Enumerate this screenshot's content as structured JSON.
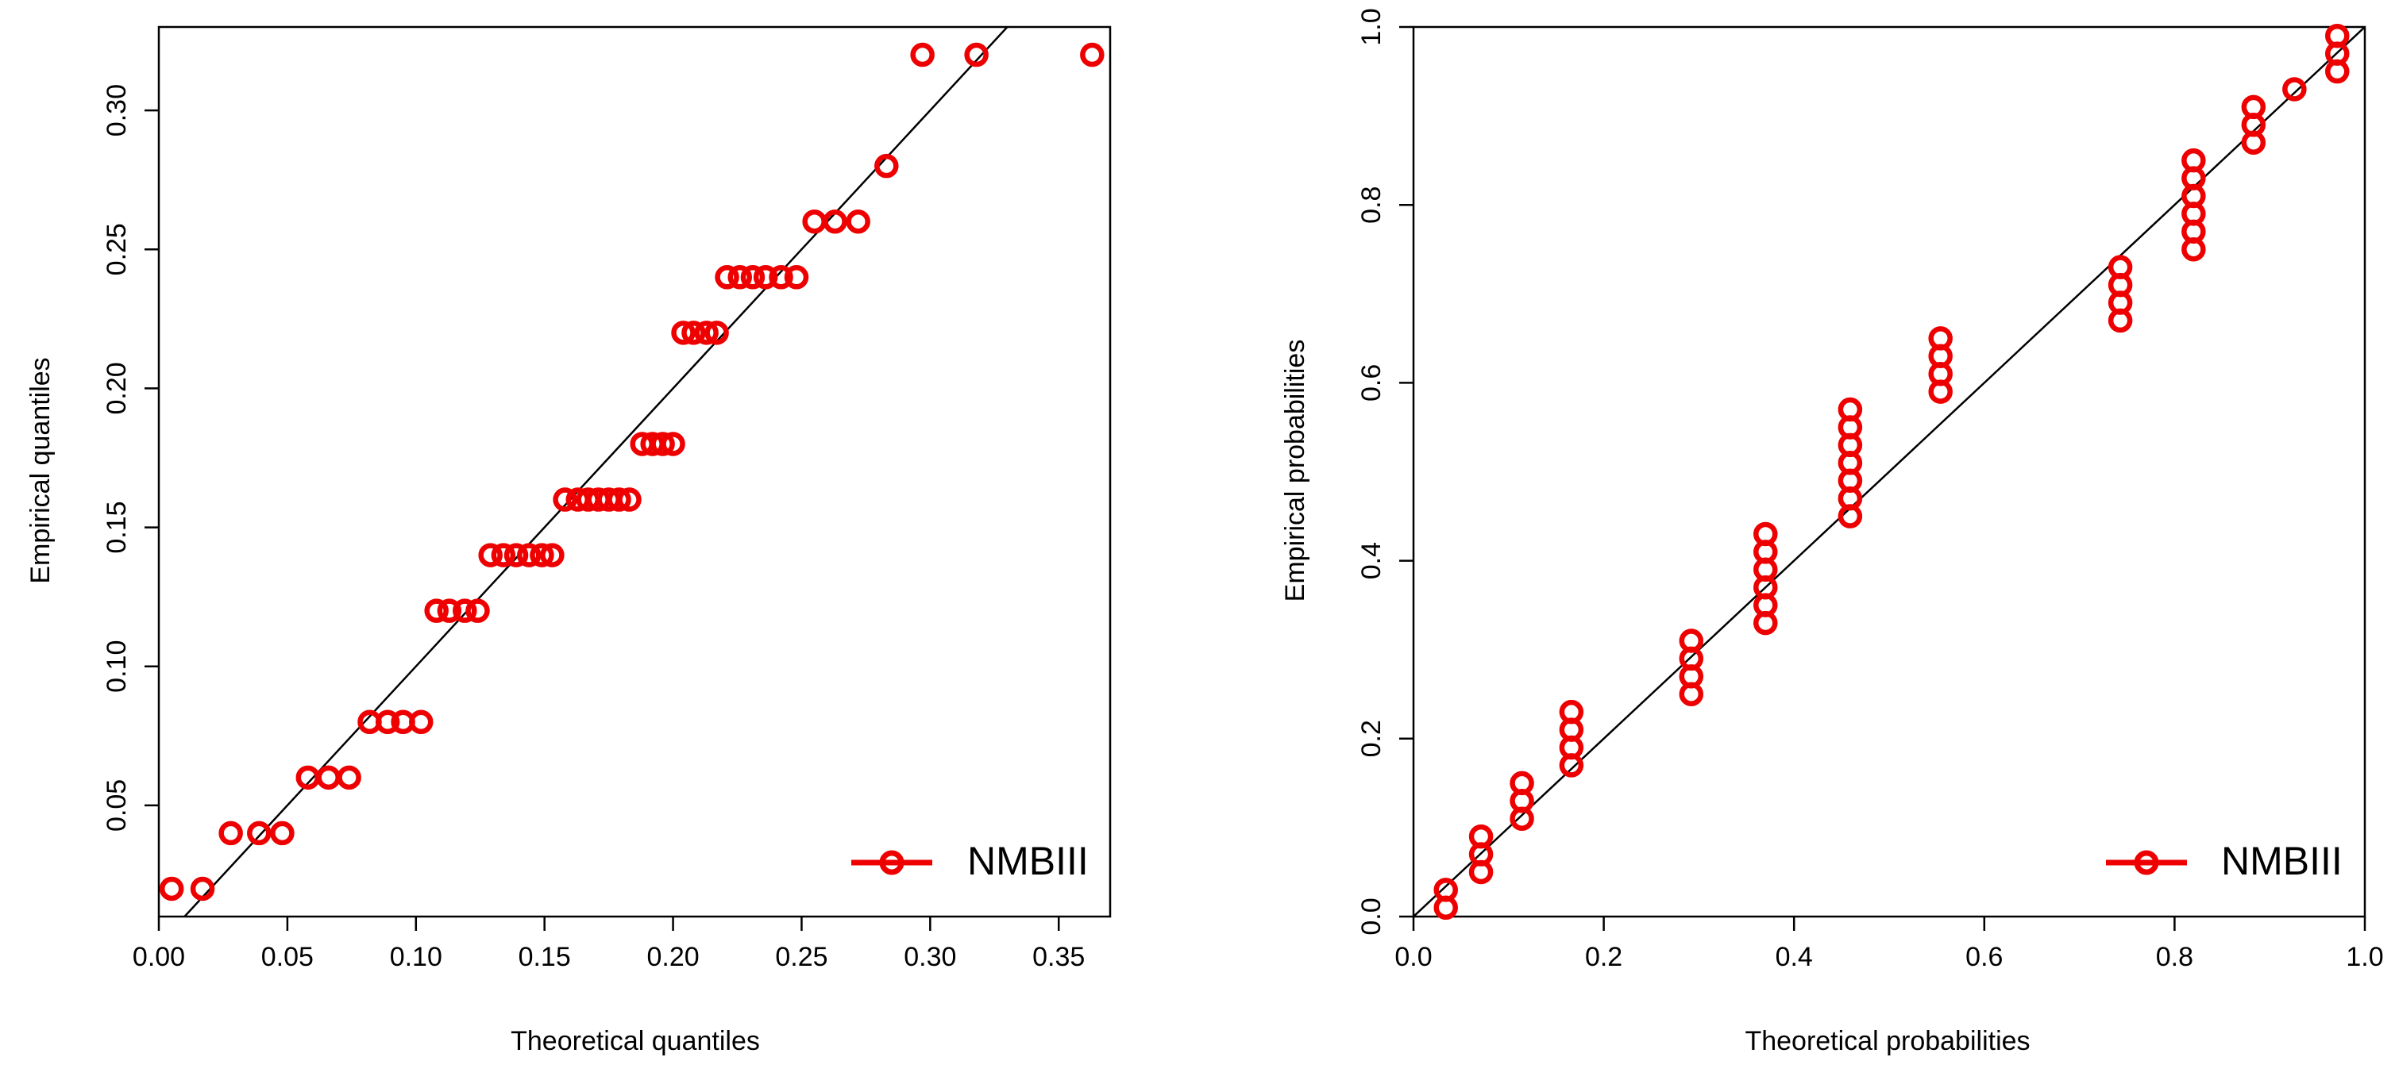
{
  "chart_data": [
    {
      "type": "scatter",
      "xlabel": "Theoretical quantiles",
      "ylabel": "Empirical quantiles",
      "xlim": [
        0.0,
        0.37
      ],
      "ylim": [
        0.01,
        0.33
      ],
      "xticks": [
        0.0,
        0.05,
        0.1,
        0.15,
        0.2,
        0.25,
        0.3,
        0.35
      ],
      "xtick_labels": [
        "0.00",
        "0.05",
        "0.10",
        "0.15",
        "0.20",
        "0.25",
        "0.30",
        "0.35"
      ],
      "yticks": [
        0.05,
        0.1,
        0.15,
        0.2,
        0.25,
        0.3
      ],
      "ytick_labels": [
        "0.05",
        "0.10",
        "0.15",
        "0.20",
        "0.25",
        "0.30"
      ],
      "legend": {
        "label": "NMBIII",
        "placement": "bottom-right"
      },
      "grid": false,
      "reference_line": {
        "from": [
          0.0,
          0.0
        ],
        "to": [
          0.37,
          0.37
        ],
        "color": "#000000"
      },
      "colors": {
        "points": "#ee0000",
        "line": "#000000"
      },
      "series": [
        {
          "name": "NMBIII",
          "x": [
            0.005,
            0.017,
            0.028,
            0.039,
            0.048,
            0.058,
            0.066,
            0.074,
            0.082,
            0.089,
            0.095,
            0.102,
            0.108,
            0.113,
            0.119,
            0.124,
            0.129,
            0.134,
            0.139,
            0.144,
            0.149,
            0.153,
            0.158,
            0.163,
            0.167,
            0.171,
            0.175,
            0.179,
            0.183,
            0.188,
            0.192,
            0.196,
            0.2,
            0.204,
            0.208,
            0.213,
            0.217,
            0.221,
            0.226,
            0.231,
            0.236,
            0.242,
            0.248,
            0.255,
            0.263,
            0.272,
            0.283,
            0.297,
            0.318,
            0.363
          ],
          "y": [
            0.02,
            0.02,
            0.04,
            0.04,
            0.04,
            0.06,
            0.06,
            0.06,
            0.08,
            0.08,
            0.08,
            0.08,
            0.12,
            0.12,
            0.12,
            0.12,
            0.14,
            0.14,
            0.14,
            0.14,
            0.14,
            0.14,
            0.16,
            0.16,
            0.16,
            0.16,
            0.16,
            0.16,
            0.16,
            0.18,
            0.18,
            0.18,
            0.18,
            0.22,
            0.22,
            0.22,
            0.22,
            0.24,
            0.24,
            0.24,
            0.24,
            0.24,
            0.24,
            0.26,
            0.26,
            0.26,
            0.28,
            0.32,
            0.32,
            0.32
          ]
        }
      ]
    },
    {
      "type": "scatter",
      "xlabel": "Theoretical probabilities",
      "ylabel": "Empirical probabilities",
      "xlim": [
        0.0,
        1.0
      ],
      "ylim": [
        0.0,
        1.0
      ],
      "xticks": [
        0.0,
        0.2,
        0.4,
        0.6,
        0.8,
        1.0
      ],
      "xtick_labels": [
        "0.0",
        "0.2",
        "0.4",
        "0.6",
        "0.8",
        "1.0"
      ],
      "yticks": [
        0.0,
        0.2,
        0.4,
        0.6,
        0.8,
        1.0
      ],
      "ytick_labels": [
        "0.0",
        "0.2",
        "0.4",
        "0.6",
        "0.8",
        "1.0"
      ],
      "legend": {
        "label": "NMBIII",
        "placement": "bottom-right"
      },
      "grid": false,
      "reference_line": {
        "from": [
          0.0,
          0.0
        ],
        "to": [
          1.0,
          1.0
        ],
        "color": "#000000"
      },
      "colors": {
        "points": "#ee0000",
        "line": "#000000"
      },
      "series": [
        {
          "name": "NMBIII",
          "x": [
            0.034,
            0.034,
            0.071,
            0.071,
            0.071,
            0.114,
            0.114,
            0.114,
            0.166,
            0.166,
            0.166,
            0.166,
            0.292,
            0.292,
            0.292,
            0.292,
            0.37,
            0.37,
            0.37,
            0.37,
            0.37,
            0.37,
            0.459,
            0.459,
            0.459,
            0.459,
            0.459,
            0.459,
            0.459,
            0.554,
            0.554,
            0.554,
            0.554,
            0.743,
            0.743,
            0.743,
            0.743,
            0.82,
            0.82,
            0.82,
            0.82,
            0.82,
            0.82,
            0.883,
            0.883,
            0.883,
            0.926,
            0.971,
            0.971,
            0.971
          ],
          "y": [
            0.01,
            0.03,
            0.05,
            0.07,
            0.09,
            0.11,
            0.13,
            0.15,
            0.17,
            0.19,
            0.21,
            0.23,
            0.25,
            0.27,
            0.29,
            0.31,
            0.33,
            0.35,
            0.37,
            0.39,
            0.41,
            0.43,
            0.45,
            0.47,
            0.49,
            0.51,
            0.53,
            0.55,
            0.57,
            0.59,
            0.61,
            0.63,
            0.65,
            0.67,
            0.69,
            0.71,
            0.73,
            0.75,
            0.77,
            0.79,
            0.81,
            0.83,
            0.85,
            0.87,
            0.89,
            0.91,
            0.93,
            0.95,
            0.97,
            0.99
          ]
        }
      ]
    }
  ]
}
